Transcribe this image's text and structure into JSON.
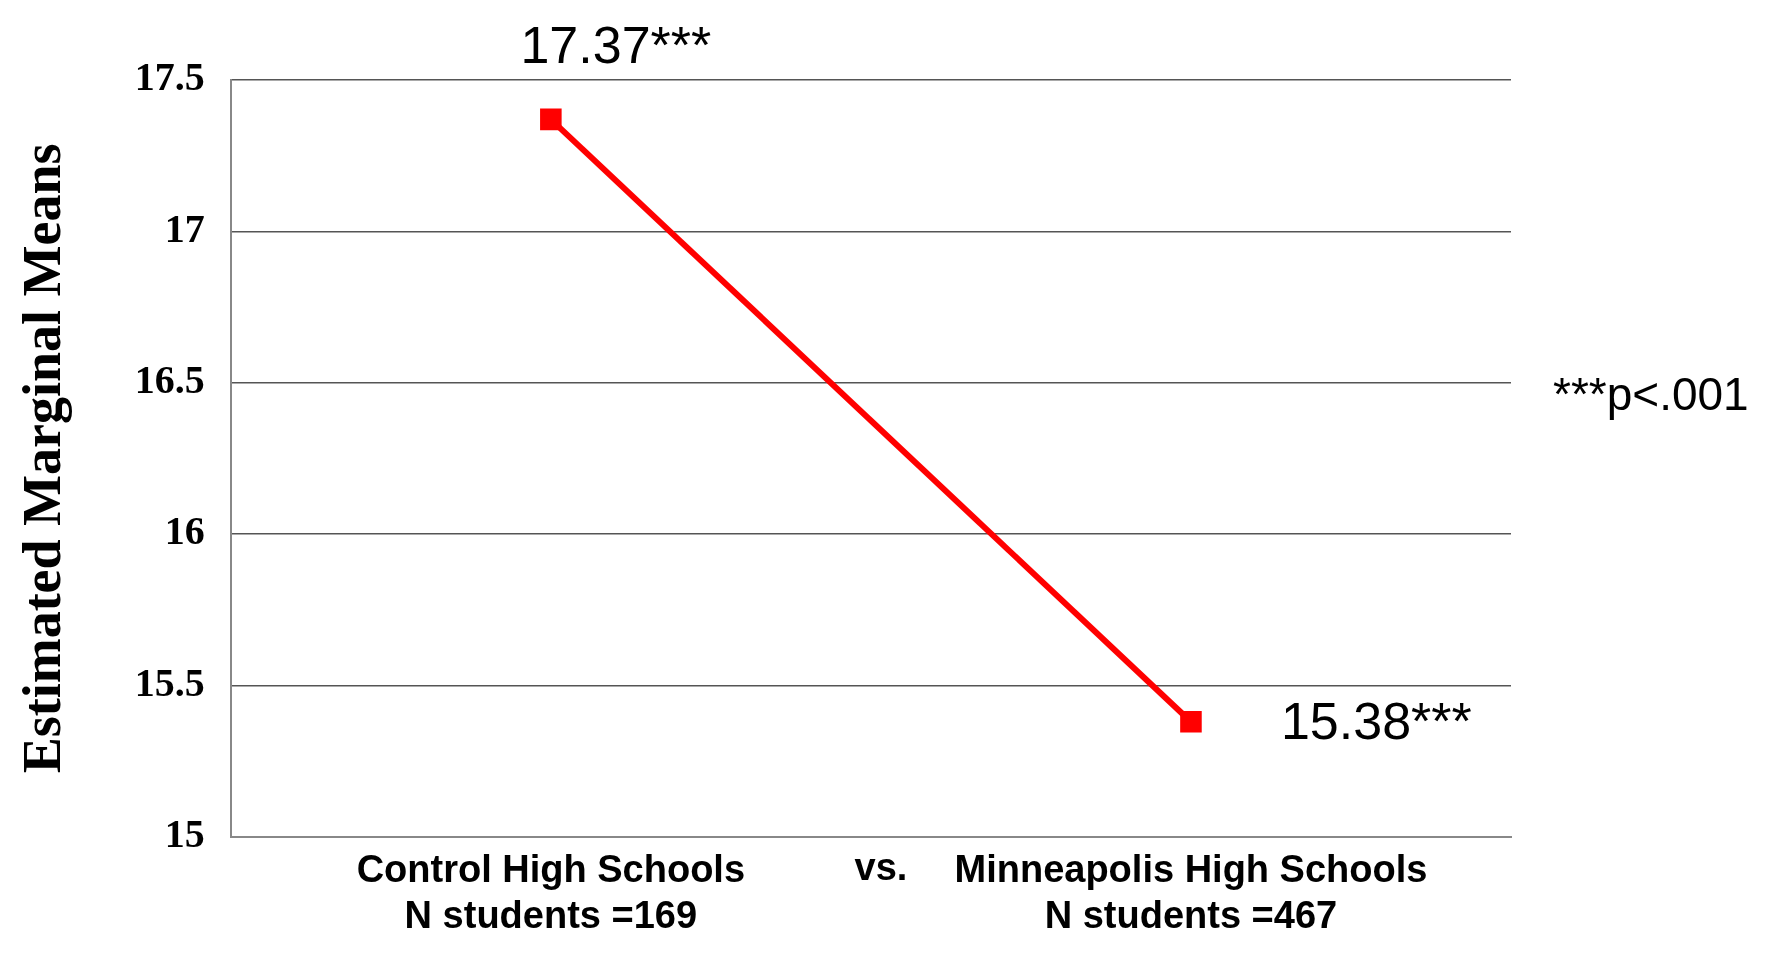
{
  "chart_data": {
    "type": "line",
    "ylabel": "Estimated Marginal Means",
    "categories": [
      "Control High Schools\nN students =169",
      "Minneapolis High Schools\nN students =467"
    ],
    "series": [
      {
        "color": "#ff0000",
        "values": [
          17.37,
          15.38
        ],
        "value_labels": [
          "17.37***",
          "15.38***"
        ]
      }
    ],
    "ylim": [
      15,
      17.5
    ],
    "yticks": [
      15,
      15.5,
      16,
      16.5,
      17,
      17.5
    ],
    "grid": "y",
    "legend": false,
    "marker": "square",
    "line_style": "solid",
    "annotations": [
      "vs.",
      "***p<.001"
    ]
  }
}
